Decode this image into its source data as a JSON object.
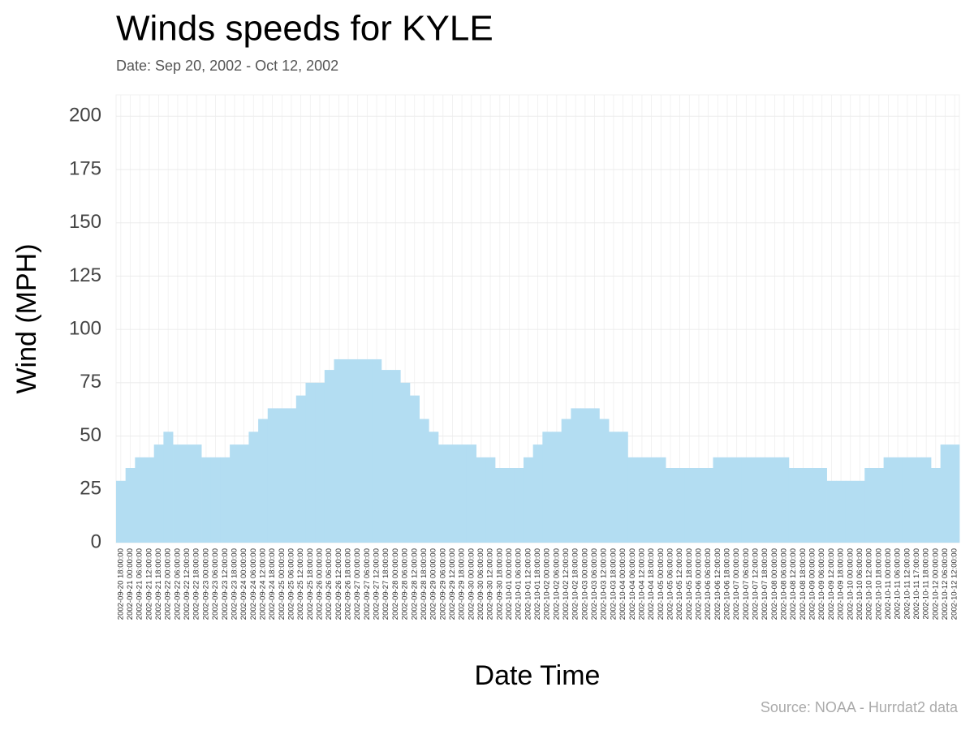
{
  "chart_data": {
    "type": "bar",
    "title": "Winds speeds for KYLE",
    "subtitle": "Date:  Sep 20, 2002 - Oct 12, 2002",
    "x_label": "Date Time",
    "y_label": "Wind (MPH)",
    "caption": "Source: NOAA - Hurrdat2 data",
    "color": "#b3ddf2",
    "grid": true,
    "ylim": [
      0,
      210
    ],
    "yticks": [
      0,
      25,
      50,
      75,
      100,
      125,
      150,
      175,
      200
    ],
    "categories": [
      "2002-09-20 18:00:00",
      "2002-09-21 00:00:00",
      "2002-09-21 06:00:00",
      "2002-09-21 12:00:00",
      "2002-09-21 18:00:00",
      "2002-09-22 00:00:00",
      "2002-09-22 06:00:00",
      "2002-09-22 12:00:00",
      "2002-09-22 18:00:00",
      "2002-09-23 00:00:00",
      "2002-09-23 06:00:00",
      "2002-09-23 12:00:00",
      "2002-09-23 18:00:00",
      "2002-09-24 00:00:00",
      "2002-09-24 06:00:00",
      "2002-09-24 12:00:00",
      "2002-09-24 18:00:00",
      "2002-09-25 00:00:00",
      "2002-09-25 06:00:00",
      "2002-09-25 12:00:00",
      "2002-09-25 18:00:00",
      "2002-09-26 00:00:00",
      "2002-09-26 06:00:00",
      "2002-09-26 12:00:00",
      "2002-09-26 18:00:00",
      "2002-09-27 00:00:00",
      "2002-09-27 06:00:00",
      "2002-09-27 12:00:00",
      "2002-09-27 18:00:00",
      "2002-09-28 00:00:00",
      "2002-09-28 06:00:00",
      "2002-09-28 12:00:00",
      "2002-09-28 18:00:00",
      "2002-09-29 00:00:00",
      "2002-09-29 06:00:00",
      "2002-09-29 12:00:00",
      "2002-09-29 18:00:00",
      "2002-09-30 00:00:00",
      "2002-09-30 06:00:00",
      "2002-09-30 12:00:00",
      "2002-09-30 18:00:00",
      "2002-10-01 00:00:00",
      "2002-10-01 06:00:00",
      "2002-10-01 12:00:00",
      "2002-10-01 18:00:00",
      "2002-10-02 00:00:00",
      "2002-10-02 06:00:00",
      "2002-10-02 12:00:00",
      "2002-10-02 18:00:00",
      "2002-10-03 00:00:00",
      "2002-10-03 06:00:00",
      "2002-10-03 12:00:00",
      "2002-10-03 18:00:00",
      "2002-10-04 00:00:00",
      "2002-10-04 06:00:00",
      "2002-10-04 12:00:00",
      "2002-10-04 18:00:00",
      "2002-10-05 00:00:00",
      "2002-10-05 06:00:00",
      "2002-10-05 12:00:00",
      "2002-10-05 18:00:00",
      "2002-10-06 00:00:00",
      "2002-10-06 06:00:00",
      "2002-10-06 12:00:00",
      "2002-10-06 18:00:00",
      "2002-10-07 00:00:00",
      "2002-10-07 06:00:00",
      "2002-10-07 12:00:00",
      "2002-10-07 18:00:00",
      "2002-10-08 00:00:00",
      "2002-10-08 06:00:00",
      "2002-10-08 12:00:00",
      "2002-10-08 18:00:00",
      "2002-10-09 00:00:00",
      "2002-10-09 06:00:00",
      "2002-10-09 12:00:00",
      "2002-10-09 18:00:00",
      "2002-10-10 00:00:00",
      "2002-10-10 06:00:00",
      "2002-10-10 12:00:00",
      "2002-10-10 18:00:00",
      "2002-10-11 00:00:00",
      "2002-10-11 06:00:00",
      "2002-10-11 12:00:00",
      "2002-10-11 17:00:00",
      "2002-10-11 18:00:00",
      "2002-10-12 00:00:00",
      "2002-10-12 06:00:00",
      "2002-10-12 12:00:00"
    ],
    "values": [
      29,
      35,
      40,
      40,
      46,
      52,
      46,
      46,
      46,
      40,
      40,
      40,
      46,
      46,
      52,
      58,
      63,
      63,
      63,
      69,
      75,
      75,
      81,
      86,
      86,
      86,
      86,
      86,
      81,
      81,
      75,
      69,
      58,
      52,
      46,
      46,
      46,
      46,
      40,
      40,
      35,
      35,
      35,
      40,
      46,
      52,
      52,
      58,
      63,
      63,
      63,
      58,
      52,
      52,
      40,
      40,
      40,
      40,
      35,
      35,
      35,
      35,
      35,
      40,
      40,
      40,
      40,
      40,
      40,
      40,
      40,
      35,
      35,
      35,
      35,
      29,
      29,
      29,
      29,
      35,
      35,
      40,
      40,
      40,
      40,
      40,
      35,
      46,
      46
    ]
  }
}
